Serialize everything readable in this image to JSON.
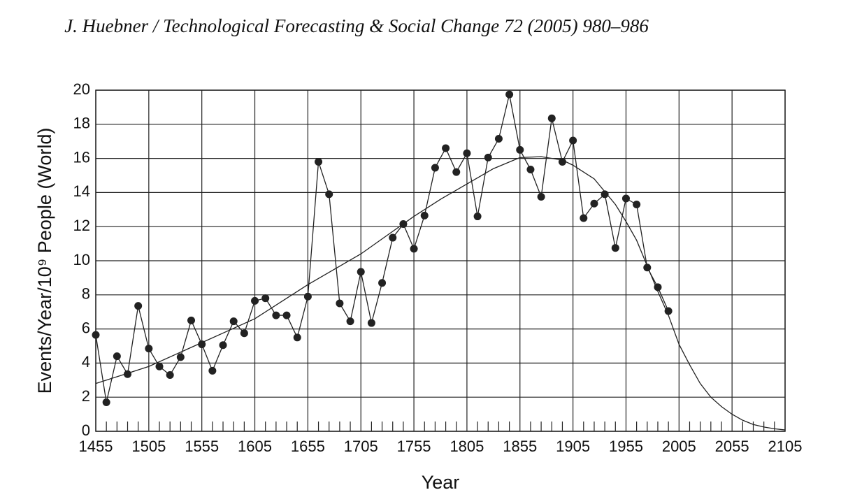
{
  "page_header": "J. Huebner / Technological Forecasting & Social Change 72 (2005) 980–986",
  "chart_data": {
    "type": "line",
    "x_label": "Year",
    "y_label": "Events/Year/10⁹ People (World)",
    "xlim": [
      1455,
      2105
    ],
    "ylim": [
      0,
      20
    ],
    "xticks": [
      1455,
      1505,
      1555,
      1605,
      1655,
      1705,
      1755,
      1805,
      1855,
      1905,
      1955,
      2005,
      2055,
      2105
    ],
    "xminorticks": [
      1465,
      1475,
      1485,
      1495,
      1515,
      1525,
      1535,
      1545,
      1565,
      1575,
      1585,
      1595,
      1615,
      1625,
      1635,
      1645,
      1665,
      1675,
      1685,
      1695,
      1715,
      1725,
      1735,
      1745,
      1765,
      1775,
      1785,
      1795,
      1815,
      1825,
      1835,
      1845,
      1865,
      1875,
      1885,
      1895,
      1915,
      1925,
      1935,
      1945,
      1965,
      1975,
      1985,
      1995,
      2015,
      2025,
      2035,
      2045,
      2065,
      2075,
      2085,
      2095
    ],
    "yticks": [
      0,
      2,
      4,
      6,
      8,
      10,
      12,
      14,
      16,
      18,
      20
    ],
    "grid": true,
    "series": [
      {
        "color": "#222222",
        "marker": true,
        "x": [
          1455,
          1465,
          1475,
          1485,
          1495,
          1505,
          1515,
          1525,
          1535,
          1545,
          1555,
          1565,
          1575,
          1585,
          1595,
          1605,
          1615,
          1625,
          1635,
          1645,
          1655,
          1665,
          1675,
          1685,
          1695,
          1705,
          1715,
          1725,
          1735,
          1745,
          1755,
          1765,
          1775,
          1785,
          1795,
          1805,
          1815,
          1825,
          1835,
          1845,
          1855,
          1865,
          1875,
          1885,
          1895,
          1905,
          1915,
          1925,
          1935,
          1945,
          1955,
          1965,
          1975,
          1985,
          1995
        ],
        "values": [
          5.65,
          1.7,
          4.4,
          3.35,
          7.35,
          4.85,
          3.8,
          3.3,
          4.35,
          6.5,
          5.1,
          3.55,
          5.05,
          6.45,
          5.75,
          7.65,
          7.8,
          6.8,
          6.8,
          5.5,
          7.9,
          15.8,
          13.9,
          7.5,
          6.45,
          9.35,
          6.35,
          8.7,
          11.35,
          12.15,
          10.7,
          12.65,
          15.45,
          16.6,
          15.2,
          16.3,
          12.6,
          16.05,
          17.15,
          19.75,
          16.5,
          15.35,
          13.75,
          18.35,
          15.8,
          17.05,
          12.5,
          13.35,
          13.9,
          10.75,
          13.65,
          13.3,
          9.6,
          8.45,
          7.05
        ]
      },
      {
        "color": "#222222",
        "marker": false,
        "x": [
          1455,
          1480,
          1505,
          1530,
          1555,
          1580,
          1605,
          1630,
          1655,
          1680,
          1705,
          1730,
          1755,
          1780,
          1805,
          1830,
          1855,
          1875,
          1895,
          1905,
          1925,
          1945,
          1955,
          1965,
          1975,
          1985,
          1995,
          2005,
          2015,
          2025,
          2035,
          2045,
          2055,
          2065,
          2075,
          2085,
          2095,
          2105
        ],
        "values": [
          2.8,
          3.3,
          3.8,
          4.5,
          5.2,
          5.9,
          6.6,
          7.6,
          8.6,
          9.5,
          10.4,
          11.5,
          12.6,
          13.6,
          14.5,
          15.4,
          16.05,
          16.1,
          15.9,
          15.6,
          14.8,
          13.3,
          12.3,
          11.2,
          9.7,
          8.2,
          6.8,
          5.1,
          3.9,
          2.8,
          2.0,
          1.45,
          1.0,
          0.65,
          0.4,
          0.25,
          0.15,
          0.08
        ]
      }
    ]
  }
}
